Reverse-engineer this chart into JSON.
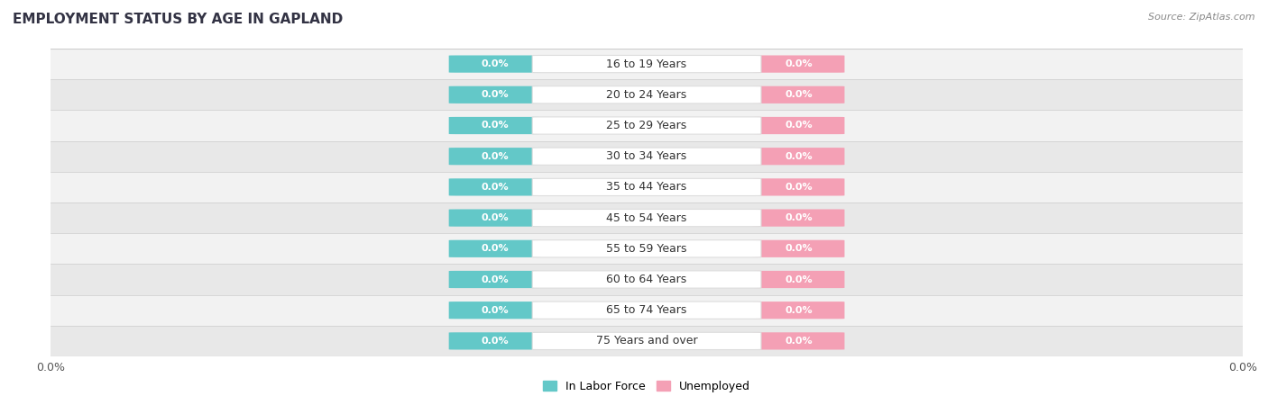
{
  "title": "EMPLOYMENT STATUS BY AGE IN GAPLAND",
  "source": "Source: ZipAtlas.com",
  "age_groups": [
    "16 to 19 Years",
    "20 to 24 Years",
    "25 to 29 Years",
    "30 to 34 Years",
    "35 to 44 Years",
    "45 to 54 Years",
    "55 to 59 Years",
    "60 to 64 Years",
    "65 to 74 Years",
    "75 Years and over"
  ],
  "in_labor_force": [
    0.0,
    0.0,
    0.0,
    0.0,
    0.0,
    0.0,
    0.0,
    0.0,
    0.0,
    0.0
  ],
  "unemployed": [
    0.0,
    0.0,
    0.0,
    0.0,
    0.0,
    0.0,
    0.0,
    0.0,
    0.0,
    0.0
  ],
  "labor_color": "#63C8C8",
  "unemployed_color": "#F4A0B5",
  "row_bg_colors": [
    "#F2F2F2",
    "#E8E8E8"
  ],
  "title_fontsize": 11,
  "value_fontsize": 8,
  "age_fontsize": 9,
  "legend_fontsize": 9,
  "source_fontsize": 8,
  "x_tick_label": "0.0%"
}
